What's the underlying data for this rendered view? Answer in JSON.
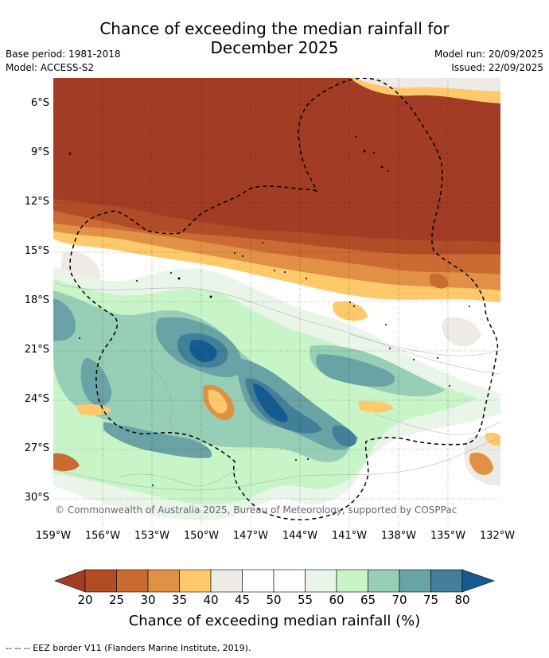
{
  "title_line1": "Chance of exceeding the median rainfall for",
  "title_line2": "December 2025",
  "left_meta": {
    "base_period": "Base period: 1981-2018",
    "model": "Model: ACCESS-S2"
  },
  "right_meta": {
    "model_run": "Model run: 20/09/2025",
    "issued": "Issued: 22/09/2025"
  },
  "map": {
    "lat_ticks": [
      "6°S",
      "9°S",
      "12°S",
      "15°S",
      "18°S",
      "21°S",
      "24°S",
      "27°S",
      "30°S"
    ],
    "lon_ticks": [
      "159°W",
      "156°W",
      "153°W",
      "150°W",
      "147°W",
      "144°W",
      "141°W",
      "138°W",
      "135°W",
      "132°W"
    ],
    "copyright": "© Commonwealth of Australia 2025, Bureau of Meteorology, supported by COSPPac"
  },
  "colorbar": {
    "labels": [
      "20",
      "25",
      "30",
      "35",
      "40",
      "45",
      "50",
      "55",
      "60",
      "65",
      "70",
      "75",
      "80"
    ],
    "colors": [
      "#a23c25",
      "#b14d26",
      "#cc6a33",
      "#e09145",
      "#fdc96b",
      "#eeeae5",
      "#ffffff",
      "#ffffff",
      "#eaf5ea",
      "#c8f5c8",
      "#97ceb6",
      "#6aa3a5",
      "#427f99",
      "#155a90"
    ],
    "title": "Chance of exceeding median rainfall (%)"
  },
  "footer": "--  --  -- EEZ border V11 (Flanders Marine Institute, 2019)."
}
